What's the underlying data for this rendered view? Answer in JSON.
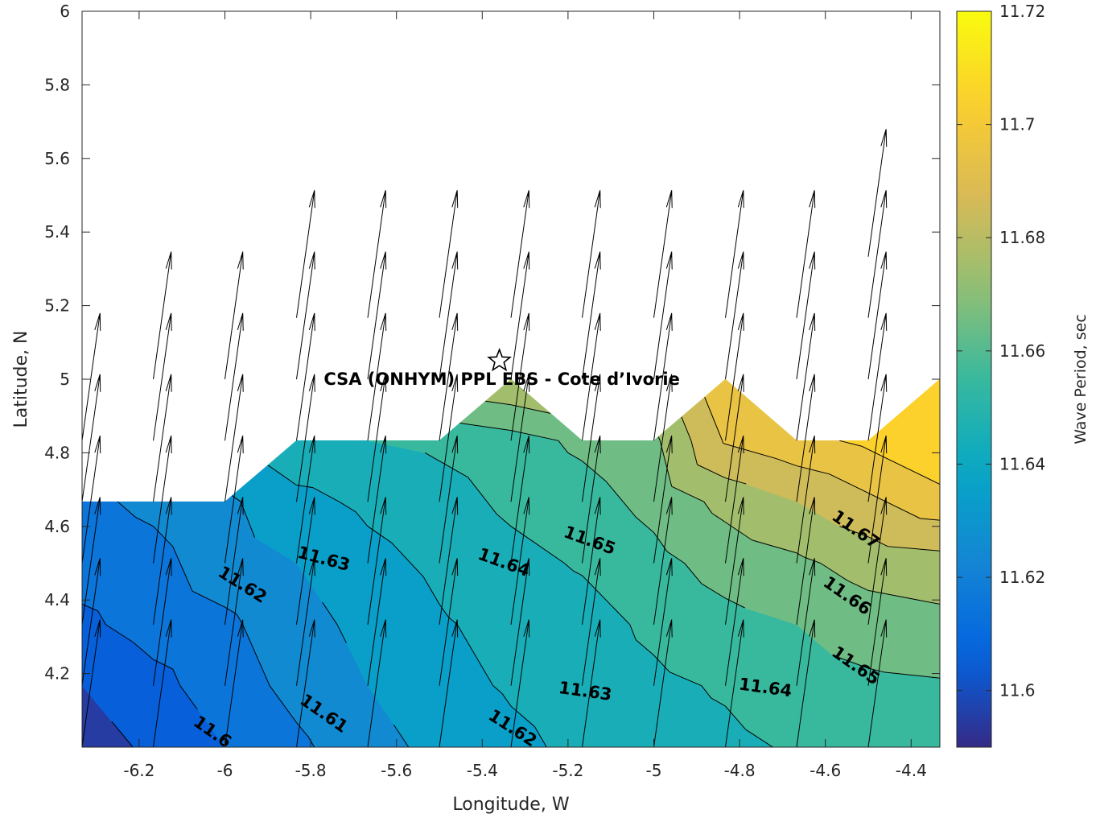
{
  "chart_data": {
    "type": "contour",
    "xlabel": "Longitude, W",
    "ylabel": "Latitude, N",
    "colorbar_label": "Wave Period, sec",
    "xlim": [
      -6.333,
      -4.333
    ],
    "ylim": [
      4.0,
      6.0
    ],
    "x_ticks": [
      -6.2,
      -6,
      -5.8,
      -5.6,
      -5.4,
      -5.2,
      -5,
      -4.8,
      -4.6,
      -4.4
    ],
    "x_tick_labels": [
      "-6.2",
      "-6",
      "-5.8",
      "-5.6",
      "-5.4",
      "-5.2",
      "-5",
      "-4.8",
      "-4.6",
      "-4.4"
    ],
    "y_ticks": [
      4.2,
      4.4,
      4.6,
      4.8,
      5.0,
      5.2,
      5.4,
      5.6,
      5.8,
      6.0
    ],
    "y_tick_labels": [
      "4.2",
      "4.4",
      "4.6",
      "4.8",
      "5",
      "5.2",
      "5.4",
      "5.6",
      "5.8",
      "6"
    ],
    "colorbar": {
      "range": [
        11.59,
        11.72
      ],
      "ticks": [
        11.6,
        11.62,
        11.64,
        11.66,
        11.68,
        11.7,
        11.72
      ],
      "tick_labels": [
        "11.6",
        "11.62",
        "11.64",
        "11.66",
        "11.68",
        "11.7",
        "11.72"
      ],
      "colormap": "parula"
    },
    "contour_levels": [
      11.6,
      11.61,
      11.62,
      11.63,
      11.64,
      11.65,
      11.66,
      11.67,
      11.68,
      11.69,
      11.7
    ],
    "contour_labels": [
      {
        "text": "11.6",
        "x": -6.03,
        "y": 4.04,
        "angle": 35
      },
      {
        "text": "11.61",
        "x": -5.77,
        "y": 4.09,
        "angle": 35
      },
      {
        "text": "11.62",
        "x": -5.33,
        "y": 4.05,
        "angle": 33
      },
      {
        "text": "11.63",
        "x": -5.16,
        "y": 4.15,
        "angle": 8
      },
      {
        "text": "11.64",
        "x": -4.74,
        "y": 4.16,
        "angle": 8
      },
      {
        "text": "11.65",
        "x": -4.53,
        "y": 4.22,
        "angle": 35
      },
      {
        "text": "11.66",
        "x": -4.55,
        "y": 4.41,
        "angle": 35
      },
      {
        "text": "11.67",
        "x": -4.53,
        "y": 4.59,
        "angle": 35
      },
      {
        "text": "11.65",
        "x": -5.15,
        "y": 4.56,
        "angle": 20
      },
      {
        "text": "11.64",
        "x": -5.35,
        "y": 4.5,
        "angle": 20
      },
      {
        "text": "11.63",
        "x": -5.77,
        "y": 4.51,
        "angle": 15
      },
      {
        "text": "11.62",
        "x": -5.96,
        "y": 4.44,
        "angle": 32
      }
    ],
    "grid_x": [
      -6.333,
      -6.167,
      -6.0,
      -5.833,
      -5.667,
      -5.5,
      -5.333,
      -5.167,
      -5.0,
      -4.833,
      -4.667,
      -4.5,
      -4.333
    ],
    "grid_y": [
      4.0,
      4.167,
      4.333,
      4.5,
      4.667,
      4.833,
      5.0
    ],
    "grid_values": [
      [
        11.595,
        11.602,
        11.61,
        11.618,
        11.626,
        11.633,
        11.638,
        11.642,
        11.646,
        11.648,
        11.651,
        11.654,
        11.656
      ],
      [
        11.6,
        11.607,
        11.615,
        11.623,
        11.63,
        11.637,
        11.641,
        11.644,
        11.648,
        11.651,
        11.655,
        11.658,
        11.659
      ],
      [
        11.608,
        11.614,
        11.618,
        11.626,
        11.633,
        11.639,
        11.643,
        11.646,
        11.652,
        11.657,
        11.66,
        11.665,
        11.667
      ],
      [
        11.614,
        11.617,
        11.625,
        11.63,
        11.637,
        11.642,
        11.647,
        11.651,
        11.657,
        11.664,
        11.668,
        11.674,
        11.676
      ],
      [
        11.618,
        11.622,
        11.628,
        11.637,
        11.642,
        11.646,
        11.652,
        11.656,
        11.663,
        11.673,
        11.68,
        11.688,
        11.696
      ],
      [
        null,
        null,
        null,
        11.648,
        11.65,
        11.652,
        11.656,
        11.662,
        11.668,
        11.691,
        11.697,
        11.702,
        11.71
      ],
      [
        null,
        null,
        null,
        null,
        null,
        null,
        11.68,
        null,
        null,
        11.699,
        null,
        null,
        11.712
      ]
    ],
    "station": {
      "name": "CSA (ONHYM) PPL EBS  - Cote d’Ivorie",
      "lon": -5.36,
      "lat": 5.05
    },
    "arrows": {
      "x": [
        -6.333,
        -6.167,
        -6.0,
        -5.833,
        -5.667,
        -5.5,
        -5.333,
        -5.167,
        -5.0,
        -4.833,
        -4.667,
        -4.5,
        -4.333
      ],
      "y_top": [
        4.833,
        5.0,
        5.0,
        5.167,
        5.167,
        5.167,
        5.167,
        5.167,
        5.167,
        5.167,
        5.167,
        5.333,
        5.333
      ],
      "lat_rows": [
        4.0,
        4.167,
        4.333,
        4.5,
        4.667,
        4.833,
        5.0,
        5.167,
        5.333
      ],
      "length_deg": 0.35,
      "tilt_deg": 8
    }
  }
}
